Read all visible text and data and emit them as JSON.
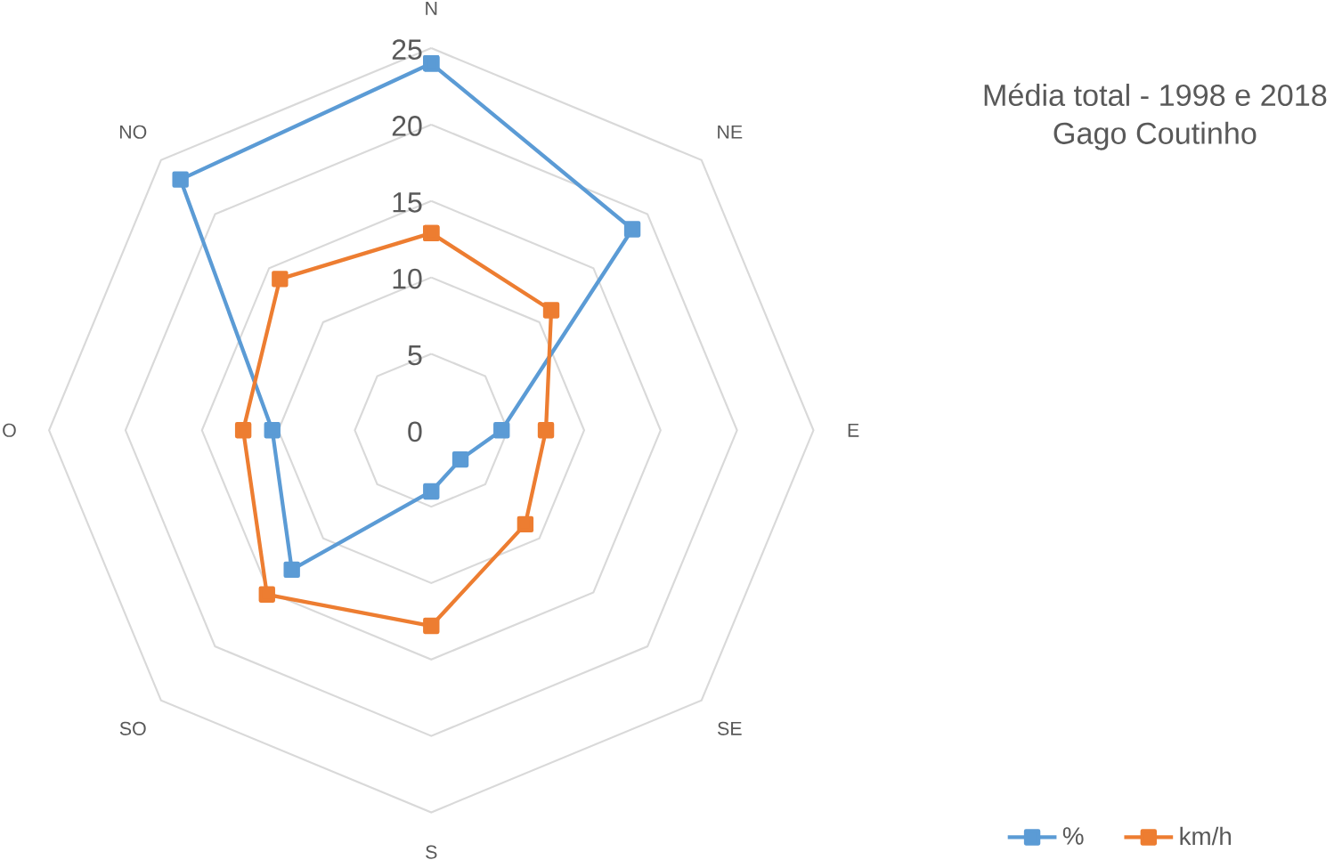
{
  "chart_data": {
    "type": "radar",
    "title": "Média total - 1998 e 2018",
    "subtitle": "Gago Coutinho",
    "categories": [
      "N",
      "NE",
      "E",
      "SE",
      "S",
      "SO",
      "O",
      "NO"
    ],
    "series": [
      {
        "name": "%",
        "color": "#5b9bd5",
        "values": [
          24,
          18.6,
          4.6,
          2.7,
          4,
          12.9,
          10.4,
          23.2
        ]
      },
      {
        "name": "km/h",
        "color": "#ed7d31",
        "values": [
          12.9,
          11.1,
          7.5,
          8.7,
          12.8,
          15.2,
          12.3,
          14
        ]
      }
    ],
    "ylim": [
      0,
      25
    ],
    "yticks": [
      0,
      5,
      10,
      15,
      20,
      25
    ],
    "grid": true,
    "marker": "square",
    "line_style": "solid",
    "legend": "bottom right"
  }
}
